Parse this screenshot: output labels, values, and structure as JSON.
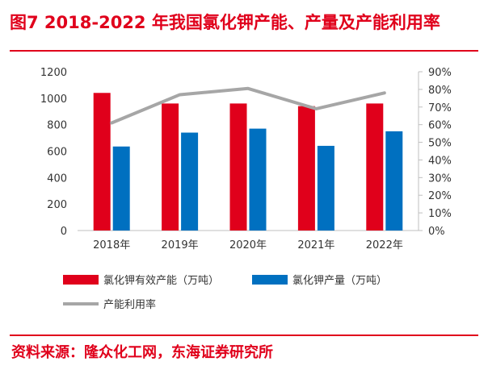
{
  "title": "图7  2018-2022 年我国氯化钾产能、产量及产能利用率",
  "source": "资料来源：隆众化工网，东海证券研究所",
  "chart_data": {
    "type": "bar",
    "categories": [
      "2018年",
      "2019年",
      "2020年",
      "2021年",
      "2022年"
    ],
    "series": [
      {
        "name": "氯化钾有效产能（万吨）",
        "kind": "bar",
        "axis": "left",
        "color": "#e0001b",
        "values": [
          1040,
          960,
          960,
          940,
          960
        ]
      },
      {
        "name": "氯化钾产量（万吨）",
        "kind": "bar",
        "axis": "left",
        "color": "#0070c0",
        "values": [
          635,
          740,
          770,
          640,
          750
        ]
      },
      {
        "name": "产能利用率",
        "kind": "line",
        "axis": "right",
        "color": "#a6a6a6",
        "values": [
          61,
          77,
          80.5,
          69,
          78
        ]
      }
    ],
    "y_left": {
      "min": 0,
      "max": 1200,
      "ticks": [
        "0",
        "200",
        "400",
        "600",
        "800",
        "1000",
        "1200"
      ]
    },
    "y_right": {
      "min": 0,
      "max": 90,
      "ticks": [
        "0%",
        "10%",
        "20%",
        "30%",
        "40%",
        "50%",
        "60%",
        "70%",
        "80%",
        "90%"
      ]
    },
    "grid": false,
    "legend_position": "bottom"
  }
}
